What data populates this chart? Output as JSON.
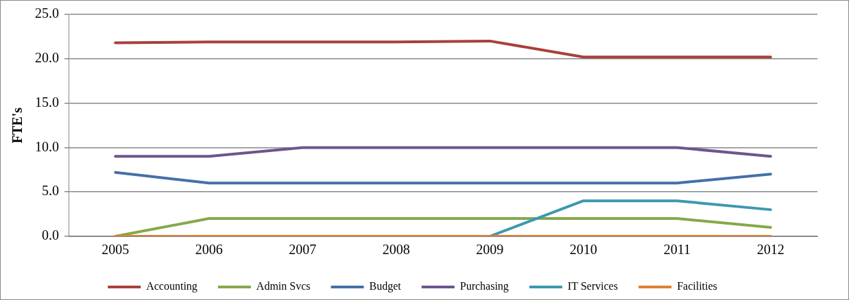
{
  "chart_data": {
    "type": "line",
    "ylabel": "FTE's",
    "categories": [
      "2005",
      "2006",
      "2007",
      "2008",
      "2009",
      "2010",
      "2011",
      "2012"
    ],
    "series": [
      {
        "name": "Accounting",
        "color": "#a8403d",
        "values": [
          21.8,
          21.9,
          21.9,
          21.9,
          22.0,
          20.2,
          20.2,
          20.2
        ]
      },
      {
        "name": "Admin Svcs",
        "color": "#86a84a",
        "values": [
          0,
          2,
          2,
          2,
          2,
          2,
          2,
          1
        ]
      },
      {
        "name": "Budget",
        "color": "#4470a8",
        "values": [
          7.2,
          6,
          6,
          6,
          6,
          6,
          6,
          7
        ]
      },
      {
        "name": "Purchasing",
        "color": "#6c558f",
        "values": [
          9,
          9,
          10,
          10,
          10,
          10,
          10,
          9
        ]
      },
      {
        "name": "IT Services",
        "color": "#3d98b0",
        "values": [
          null,
          null,
          null,
          null,
          0,
          4,
          4,
          3
        ]
      },
      {
        "name": "Facilities",
        "color": "#e08035",
        "values": [
          0,
          0,
          0,
          0,
          0,
          0,
          0,
          0
        ]
      }
    ],
    "ylim": [
      0,
      25
    ],
    "yticks": [
      {
        "value": 0,
        "label": "0.0"
      },
      {
        "value": 5,
        "label": "5.0"
      },
      {
        "value": 10,
        "label": "10.0"
      },
      {
        "value": 15,
        "label": "15.0"
      },
      {
        "value": 20,
        "label": "20.0"
      },
      {
        "value": 25,
        "label": "25.0"
      }
    ],
    "grid": "y",
    "legend": "bottom",
    "marker": "none",
    "line_style": "solid"
  }
}
